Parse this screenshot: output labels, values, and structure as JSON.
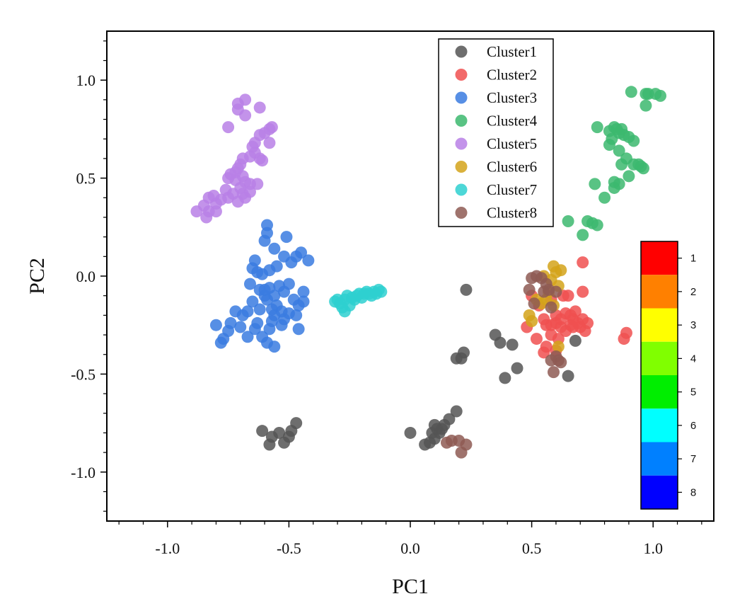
{
  "chart_data": {
    "type": "scatter",
    "title": "",
    "xlabel": "PC1",
    "ylabel": "PC2",
    "xlim": [
      -1.25,
      1.25
    ],
    "ylim": [
      -1.25,
      1.25
    ],
    "x_ticks": [
      -1.0,
      -0.5,
      0.0,
      0.5,
      1.0
    ],
    "x_tick_labels": [
      "-1.0",
      "-0.5",
      "0.0",
      "0.5",
      "1.0"
    ],
    "y_ticks": [
      1.0,
      0.5,
      0.0,
      -0.5,
      -1.0
    ],
    "y_tick_labels": [
      "1.0",
      "0.5",
      "0.0",
      "-0.5",
      "-1.0"
    ],
    "grid": false,
    "legend_position": "top-center",
    "series": [
      {
        "name": "Cluster1",
        "color": "#555555",
        "points": [
          [
            -0.61,
            -0.79
          ],
          [
            -0.57,
            -0.82
          ],
          [
            -0.54,
            -0.8
          ],
          [
            -0.58,
            -0.86
          ],
          [
            -0.52,
            -0.85
          ],
          [
            -0.5,
            -0.82
          ],
          [
            -0.49,
            -0.79
          ],
          [
            -0.47,
            -0.75
          ],
          [
            0.0,
            -0.8
          ],
          [
            0.06,
            -0.86
          ],
          [
            0.08,
            -0.85
          ],
          [
            0.09,
            -0.8
          ],
          [
            0.1,
            -0.76
          ],
          [
            0.11,
            -0.78
          ],
          [
            0.12,
            -0.8
          ],
          [
            0.13,
            -0.78
          ],
          [
            0.14,
            -0.76
          ],
          [
            0.16,
            -0.73
          ],
          [
            0.19,
            -0.69
          ],
          [
            0.1,
            -0.83
          ],
          [
            0.19,
            -0.42
          ],
          [
            0.21,
            -0.42
          ],
          [
            0.22,
            -0.39
          ],
          [
            0.23,
            -0.07
          ],
          [
            0.35,
            -0.3
          ],
          [
            0.37,
            -0.34
          ],
          [
            0.39,
            -0.52
          ],
          [
            0.42,
            -0.35
          ],
          [
            0.44,
            -0.47
          ],
          [
            0.68,
            -0.33
          ],
          [
            0.65,
            -0.51
          ]
        ]
      },
      {
        "name": "Cluster2",
        "color": "#f05050",
        "points": [
          [
            0.71,
            0.07
          ],
          [
            0.71,
            -0.08
          ],
          [
            0.63,
            -0.1
          ],
          [
            0.65,
            -0.1
          ],
          [
            0.58,
            -0.12
          ],
          [
            0.6,
            -0.2
          ],
          [
            0.62,
            -0.22
          ],
          [
            0.64,
            -0.19
          ],
          [
            0.66,
            -0.2
          ],
          [
            0.67,
            -0.22
          ],
          [
            0.68,
            -0.18
          ],
          [
            0.69,
            -0.24
          ],
          [
            0.7,
            -0.26
          ],
          [
            0.71,
            -0.22
          ],
          [
            0.72,
            -0.28
          ],
          [
            0.73,
            -0.24
          ],
          [
            0.66,
            -0.25
          ],
          [
            0.64,
            -0.28
          ],
          [
            0.62,
            -0.26
          ],
          [
            0.6,
            -0.24
          ],
          [
            0.58,
            -0.25
          ],
          [
            0.56,
            -0.25
          ],
          [
            0.55,
            -0.22
          ],
          [
            0.53,
            -0.15
          ],
          [
            0.5,
            -0.1
          ],
          [
            0.48,
            -0.26
          ],
          [
            0.52,
            -0.32
          ],
          [
            0.55,
            -0.39
          ],
          [
            0.56,
            -0.36
          ],
          [
            0.58,
            -0.3
          ],
          [
            0.6,
            -0.38
          ],
          [
            0.88,
            -0.32
          ],
          [
            0.89,
            -0.29
          ],
          [
            0.67,
            -0.26
          ],
          [
            0.61,
            -0.32
          ]
        ]
      },
      {
        "name": "Cluster3",
        "color": "#3a7be0",
        "points": [
          [
            -0.59,
            0.26
          ],
          [
            -0.59,
            0.22
          ],
          [
            -0.6,
            0.18
          ],
          [
            -0.56,
            0.14
          ],
          [
            -0.51,
            0.2
          ],
          [
            -0.47,
            0.1
          ],
          [
            -0.45,
            0.12
          ],
          [
            -0.42,
            0.08
          ],
          [
            -0.49,
            0.07
          ],
          [
            -0.52,
            0.1
          ],
          [
            -0.55,
            0.05
          ],
          [
            -0.58,
            0.03
          ],
          [
            -0.61,
            0.01
          ],
          [
            -0.64,
            0.08
          ],
          [
            -0.65,
            0.04
          ],
          [
            -0.63,
            0.02
          ],
          [
            -0.66,
            -0.04
          ],
          [
            -0.62,
            -0.07
          ],
          [
            -0.6,
            -0.1
          ],
          [
            -0.58,
            -0.06
          ],
          [
            -0.56,
            -0.1
          ],
          [
            -0.54,
            -0.05
          ],
          [
            -0.52,
            -0.08
          ],
          [
            -0.5,
            -0.04
          ],
          [
            -0.48,
            -0.12
          ],
          [
            -0.46,
            -0.15
          ],
          [
            -0.44,
            -0.13
          ],
          [
            -0.44,
            -0.08
          ],
          [
            -0.47,
            -0.2
          ],
          [
            -0.5,
            -0.19
          ],
          [
            -0.52,
            -0.22
          ],
          [
            -0.55,
            -0.15
          ],
          [
            -0.57,
            -0.17
          ],
          [
            -0.59,
            -0.12
          ],
          [
            -0.62,
            -0.17
          ],
          [
            -0.65,
            -0.13
          ],
          [
            -0.67,
            -0.18
          ],
          [
            -0.69,
            -0.2
          ],
          [
            -0.72,
            -0.18
          ],
          [
            -0.74,
            -0.24
          ],
          [
            -0.75,
            -0.28
          ],
          [
            -0.77,
            -0.32
          ],
          [
            -0.8,
            -0.25
          ],
          [
            -0.78,
            -0.34
          ],
          [
            -0.7,
            -0.26
          ],
          [
            -0.67,
            -0.31
          ],
          [
            -0.64,
            -0.27
          ],
          [
            -0.61,
            -0.31
          ],
          [
            -0.59,
            -0.34
          ],
          [
            -0.58,
            -0.27
          ],
          [
            -0.56,
            -0.36
          ],
          [
            -0.53,
            -0.25
          ],
          [
            -0.46,
            -0.27
          ],
          [
            -0.57,
            -0.23
          ],
          [
            -0.63,
            -0.24
          ],
          [
            -0.6,
            -0.07
          ],
          [
            -0.53,
            -0.18
          ],
          [
            -0.56,
            -0.2
          ]
        ]
      },
      {
        "name": "Cluster4",
        "color": "#3cb96e",
        "points": [
          [
            0.91,
            0.94
          ],
          [
            0.97,
            0.93
          ],
          [
            0.98,
            0.93
          ],
          [
            1.01,
            0.93
          ],
          [
            1.03,
            0.92
          ],
          [
            0.97,
            0.87
          ],
          [
            0.77,
            0.76
          ],
          [
            0.82,
            0.74
          ],
          [
            0.84,
            0.76
          ],
          [
            0.85,
            0.75
          ],
          [
            0.86,
            0.73
          ],
          [
            0.87,
            0.75
          ],
          [
            0.88,
            0.72
          ],
          [
            0.9,
            0.71
          ],
          [
            0.92,
            0.69
          ],
          [
            0.83,
            0.7
          ],
          [
            0.82,
            0.67
          ],
          [
            0.86,
            0.64
          ],
          [
            0.89,
            0.6
          ],
          [
            0.92,
            0.57
          ],
          [
            0.94,
            0.57
          ],
          [
            0.96,
            0.55
          ],
          [
            0.95,
            0.56
          ],
          [
            0.87,
            0.57
          ],
          [
            0.9,
            0.51
          ],
          [
            0.84,
            0.48
          ],
          [
            0.86,
            0.47
          ],
          [
            0.76,
            0.47
          ],
          [
            0.84,
            0.45
          ],
          [
            0.8,
            0.4
          ],
          [
            0.73,
            0.28
          ],
          [
            0.75,
            0.27
          ],
          [
            0.77,
            0.26
          ],
          [
            0.65,
            0.28
          ],
          [
            0.71,
            0.21
          ]
        ]
      },
      {
        "name": "Cluster5",
        "color": "#b880e6",
        "points": [
          [
            -0.71,
            0.88
          ],
          [
            -0.68,
            0.9
          ],
          [
            -0.71,
            0.85
          ],
          [
            -0.68,
            0.82
          ],
          [
            -0.62,
            0.86
          ],
          [
            -0.57,
            0.76
          ],
          [
            -0.58,
            0.75
          ],
          [
            -0.6,
            0.73
          ],
          [
            -0.62,
            0.72
          ],
          [
            -0.64,
            0.68
          ],
          [
            -0.65,
            0.66
          ],
          [
            -0.64,
            0.63
          ],
          [
            -0.62,
            0.6
          ],
          [
            -0.61,
            0.59
          ],
          [
            -0.58,
            0.68
          ],
          [
            -0.75,
            0.76
          ],
          [
            -0.66,
            0.61
          ],
          [
            -0.69,
            0.6
          ],
          [
            -0.7,
            0.57
          ],
          [
            -0.71,
            0.55
          ],
          [
            -0.72,
            0.53
          ],
          [
            -0.74,
            0.52
          ],
          [
            -0.75,
            0.5
          ],
          [
            -0.72,
            0.49
          ],
          [
            -0.69,
            0.51
          ],
          [
            -0.68,
            0.48
          ],
          [
            -0.7,
            0.45
          ],
          [
            -0.66,
            0.47
          ],
          [
            -0.63,
            0.47
          ],
          [
            -0.69,
            0.42
          ],
          [
            -0.73,
            0.42
          ],
          [
            -0.75,
            0.4
          ],
          [
            -0.71,
            0.38
          ],
          [
            -0.68,
            0.4
          ],
          [
            -0.66,
            0.43
          ],
          [
            -0.78,
            0.39
          ],
          [
            -0.8,
            0.37
          ],
          [
            -0.81,
            0.41
          ],
          [
            -0.83,
            0.4
          ],
          [
            -0.8,
            0.33
          ],
          [
            -0.83,
            0.33
          ],
          [
            -0.85,
            0.36
          ],
          [
            -0.88,
            0.33
          ],
          [
            -0.84,
            0.3
          ],
          [
            -0.76,
            0.44
          ]
        ]
      },
      {
        "name": "Cluster6",
        "color": "#d4a31a",
        "points": [
          [
            0.59,
            0.05
          ],
          [
            0.6,
            0.02
          ],
          [
            0.62,
            0.03
          ],
          [
            0.55,
            0.0
          ],
          [
            0.58,
            -0.02
          ],
          [
            0.61,
            -0.05
          ],
          [
            0.57,
            -0.08
          ],
          [
            0.56,
            -0.12
          ],
          [
            0.52,
            -0.12
          ],
          [
            0.54,
            -0.14
          ],
          [
            0.49,
            -0.2
          ],
          [
            0.5,
            -0.23
          ],
          [
            0.61,
            -0.36
          ],
          [
            0.59,
            -0.15
          ]
        ]
      },
      {
        "name": "Cluster7",
        "color": "#2ed0d0",
        "points": [
          [
            -0.31,
            -0.13
          ],
          [
            -0.29,
            -0.14
          ],
          [
            -0.28,
            -0.16
          ],
          [
            -0.27,
            -0.12
          ],
          [
            -0.26,
            -0.1
          ],
          [
            -0.25,
            -0.15
          ],
          [
            -0.24,
            -0.11
          ],
          [
            -0.23,
            -0.12
          ],
          [
            -0.22,
            -0.1
          ],
          [
            -0.21,
            -0.09
          ],
          [
            -0.2,
            -0.11
          ],
          [
            -0.19,
            -0.09
          ],
          [
            -0.18,
            -0.08
          ],
          [
            -0.17,
            -0.09
          ],
          [
            -0.16,
            -0.1
          ],
          [
            -0.15,
            -0.08
          ],
          [
            -0.14,
            -0.09
          ],
          [
            -0.13,
            -0.07
          ],
          [
            -0.12,
            -0.08
          ],
          [
            -0.27,
            -0.18
          ],
          [
            -0.3,
            -0.12
          ]
        ]
      },
      {
        "name": "Cluster8",
        "color": "#8e5a54",
        "points": [
          [
            0.5,
            -0.01
          ],
          [
            0.52,
            0.0
          ],
          [
            0.54,
            -0.01
          ],
          [
            0.56,
            -0.04
          ],
          [
            0.55,
            -0.08
          ],
          [
            0.57,
            -0.07
          ],
          [
            0.6,
            -0.08
          ],
          [
            0.49,
            -0.07
          ],
          [
            0.51,
            -0.14
          ],
          [
            0.58,
            -0.16
          ],
          [
            0.6,
            -0.41
          ],
          [
            0.61,
            -0.43
          ],
          [
            0.62,
            -0.44
          ],
          [
            0.58,
            -0.43
          ],
          [
            0.59,
            -0.49
          ],
          [
            0.17,
            -0.84
          ],
          [
            0.2,
            -0.84
          ],
          [
            0.21,
            -0.9
          ],
          [
            0.23,
            -0.86
          ],
          [
            0.15,
            -0.85
          ]
        ]
      }
    ],
    "colorbar": {
      "labels": [
        "1",
        "2",
        "3",
        "4",
        "5",
        "6",
        "7",
        "8"
      ],
      "colors": [
        "#ff0000",
        "#ff8000",
        "#ffff00",
        "#80ff00",
        "#00ee00",
        "#00ffff",
        "#0080ff",
        "#0000ff"
      ]
    }
  }
}
